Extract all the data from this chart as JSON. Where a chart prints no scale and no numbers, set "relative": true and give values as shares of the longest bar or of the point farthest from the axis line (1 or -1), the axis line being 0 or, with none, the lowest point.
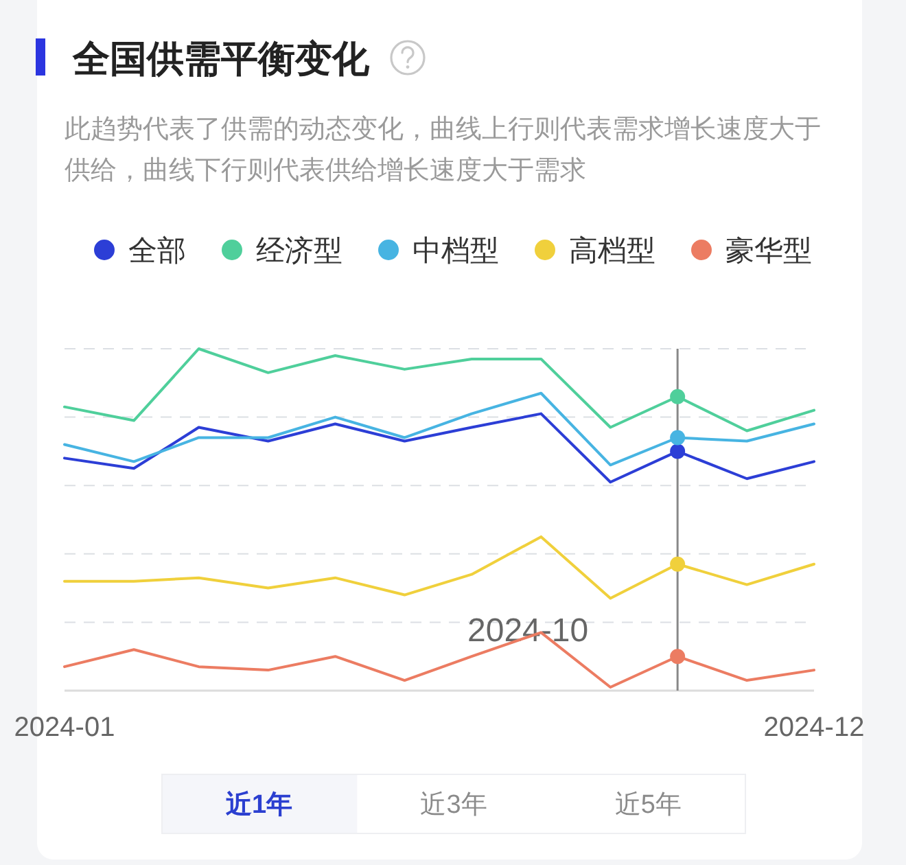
{
  "chart_data": {
    "type": "line",
    "title": "全国供需平衡变化",
    "subtitle": "此趋势代表了供需的动态变化，曲线上行则代表需求增长速度大于供给，曲线下行则代表供给增长速度大于需求",
    "x": [
      "2024-01",
      "2024-02",
      "2024-03",
      "2024-04",
      "2024-05",
      "2024-06",
      "2024-07",
      "2024-08",
      "2024-09",
      "2024-10",
      "2024-11",
      "2024-12"
    ],
    "xlim": [
      "2024-01",
      "2024-12"
    ],
    "xticks": [
      "2024-01",
      "2024-12"
    ],
    "relative": true,
    "grid": "y",
    "legend": "top",
    "series": [
      {
        "name": "全部",
        "color": "#2c3ed6",
        "values": [
          0.68,
          0.65,
          0.77,
          0.73,
          0.78,
          0.73,
          0.77,
          0.81,
          0.61,
          0.7,
          0.62,
          0.67
        ]
      },
      {
        "name": "经济型",
        "color": "#4fcf9b",
        "values": [
          0.83,
          0.79,
          1.0,
          0.93,
          0.98,
          0.94,
          0.97,
          0.97,
          0.77,
          0.86,
          0.76,
          0.82
        ]
      },
      {
        "name": "中档型",
        "color": "#47b4e2",
        "values": [
          0.72,
          0.67,
          0.74,
          0.74,
          0.8,
          0.74,
          0.81,
          0.87,
          0.66,
          0.74,
          0.73,
          0.78
        ]
      },
      {
        "name": "高档型",
        "color": "#f0d03c",
        "values": [
          0.32,
          0.32,
          0.33,
          0.3,
          0.33,
          0.28,
          0.34,
          0.45,
          0.27,
          0.37,
          0.31,
          0.37
        ]
      },
      {
        "name": "豪华型",
        "color": "#ec7c62",
        "values": [
          0.07,
          0.12,
          0.07,
          0.06,
          0.1,
          0.03,
          0.1,
          0.17,
          0.01,
          0.1,
          0.03,
          0.06
        ]
      },
      {
        "type": "scatter",
        "color": "#2c3ed6",
        "x": [
          "2024-10"
        ],
        "values": [
          0.7
        ]
      },
      {
        "type": "scatter",
        "color": "#4fcf9b",
        "x": [
          "2024-10"
        ],
        "values": [
          0.86
        ]
      },
      {
        "type": "scatter",
        "color": "#47b4e2",
        "x": [
          "2024-10"
        ],
        "values": [
          0.74
        ]
      },
      {
        "type": "scatter",
        "color": "#f0d03c",
        "x": [
          "2024-10"
        ],
        "values": [
          0.37
        ]
      },
      {
        "type": "scatter",
        "color": "#ec7c62",
        "x": [
          "2024-10"
        ],
        "values": [
          0.1
        ]
      }
    ],
    "ref_lines": [
      {
        "axis": "x",
        "value": "2024-10",
        "label": "2024-10",
        "color": "#888888"
      }
    ],
    "annotations": [
      "近1年",
      "近3年",
      "近5年"
    ]
  }
}
